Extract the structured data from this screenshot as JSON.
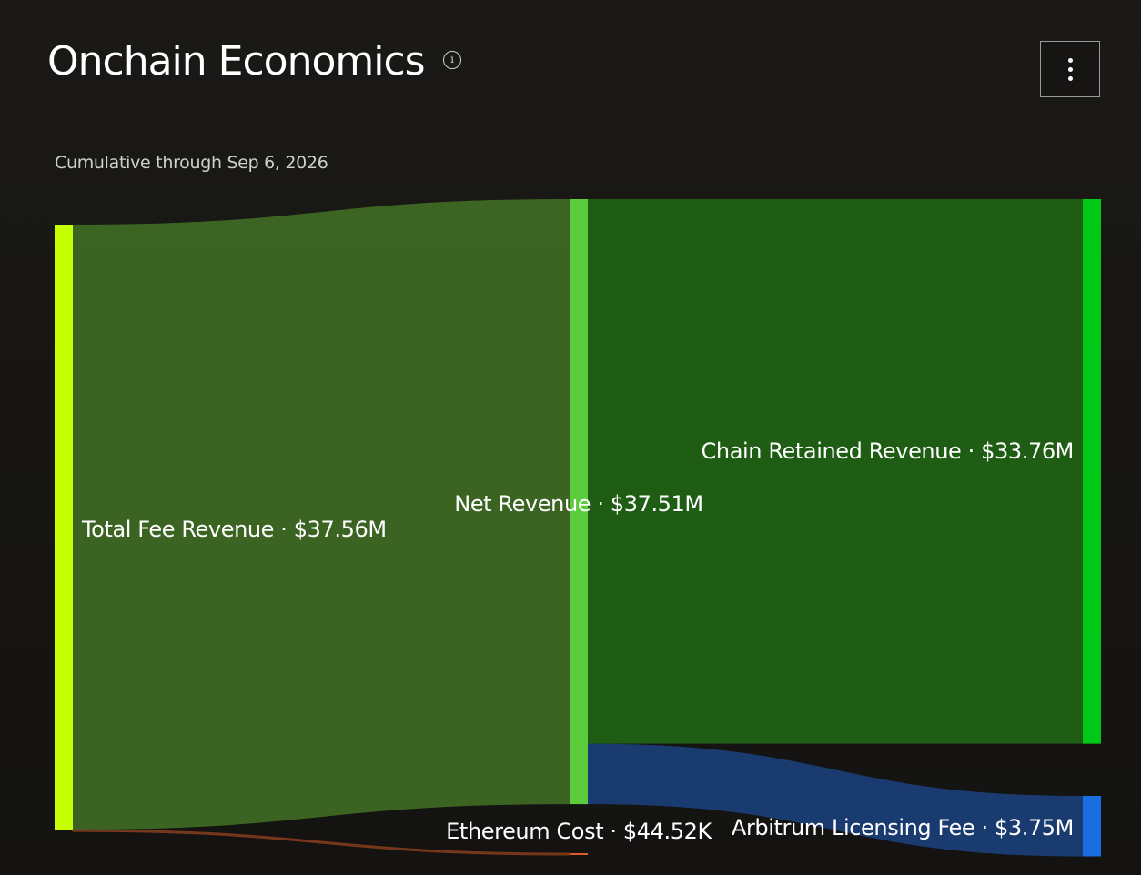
{
  "header": {
    "title": "Onchain Economics",
    "info_icon": "info-icon",
    "menu_icon": "vertical-ellipsis-icon"
  },
  "subtitle": "Cumulative through Sep 6, 2026",
  "chart_data": {
    "type": "sankey",
    "title": "Onchain Economics",
    "subtitle": "Cumulative through Sep 6, 2026",
    "unit": "USD",
    "nodes": [
      {
        "id": "total_fee_revenue",
        "label": "Total Fee Revenue · $37.56M",
        "value": 37560000,
        "color": "#c6ff00"
      },
      {
        "id": "net_revenue",
        "label": "Net Revenue · $37.51M",
        "value": 37510000,
        "color": "#5ccc3c"
      },
      {
        "id": "ethereum_cost",
        "label": "Ethereum Cost · $44.52K",
        "value": 44520,
        "color": "#e05a2a"
      },
      {
        "id": "chain_retained_revenue",
        "label": "Chain Retained Revenue · $33.76M",
        "value": 33760000,
        "color": "#00c817"
      },
      {
        "id": "arbitrum_licensing_fee",
        "label": "Arbitrum Licensing Fee · $3.75M",
        "value": 3750000,
        "color": "#1a6fe0"
      }
    ],
    "links": [
      {
        "source": "total_fee_revenue",
        "target": "net_revenue",
        "value": 37510000,
        "color": "#3f6b24"
      },
      {
        "source": "total_fee_revenue",
        "target": "ethereum_cost",
        "value": 44520,
        "color": "#7a3a1c"
      },
      {
        "source": "net_revenue",
        "target": "chain_retained_revenue",
        "value": 33760000,
        "color": "#206414"
      },
      {
        "source": "net_revenue",
        "target": "arbitrum_licensing_fee",
        "value": 3750000,
        "color": "#1a3f78"
      }
    ]
  }
}
